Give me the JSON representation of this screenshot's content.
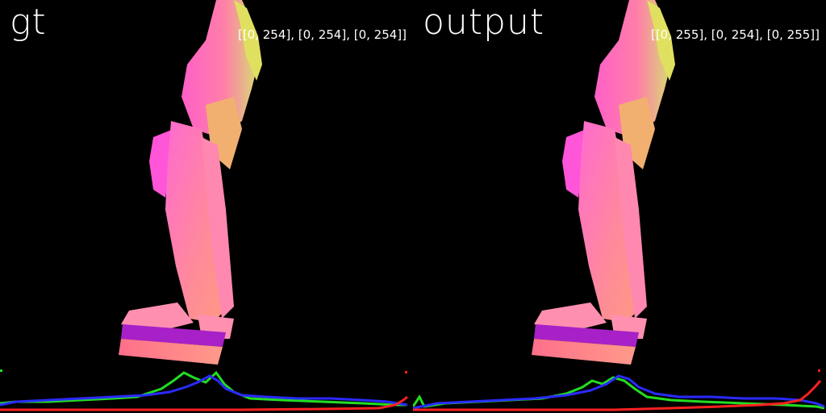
{
  "panels": [
    {
      "title": "gt",
      "range": "[[0, 254], [0, 254], [0, 254]]"
    },
    {
      "title": "output",
      "range": "[[0, 255], [0, 254], [0, 255]]"
    }
  ],
  "colors": {
    "background": "#000000",
    "red": "#ff2020",
    "green": "#22dd22",
    "blue": "#2a2aff"
  }
}
